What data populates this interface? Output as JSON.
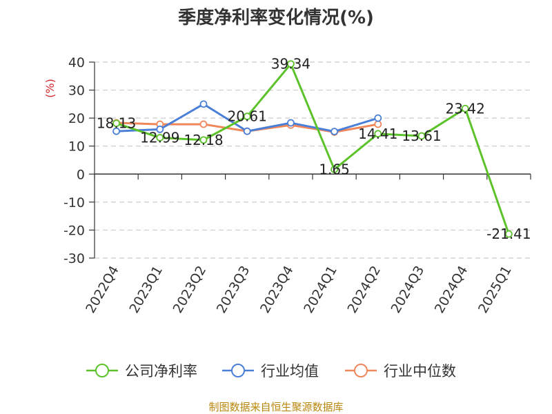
{
  "chart_data": {
    "type": "line",
    "title": "季度净利率变化情况(%)",
    "ylabel": "(%)",
    "categories": [
      "2022Q4",
      "2023Q1",
      "2023Q2",
      "2023Q3",
      "2023Q4",
      "2024Q1",
      "2024Q2",
      "2024Q3",
      "2024Q4",
      "2025Q1"
    ],
    "ylim": [
      -30,
      40
    ],
    "yticks": [
      40,
      30,
      20,
      10,
      0,
      -10,
      -20,
      -30
    ],
    "grid": true,
    "legend_position": "bottom",
    "series": [
      {
        "name": "公司净利率",
        "color": "#5cc22a",
        "values": [
          18.13,
          12.99,
          12.18,
          20.61,
          39.34,
          1.65,
          14.41,
          13.61,
          23.42,
          -21.41
        ],
        "labels": [
          "18.13",
          "12.99",
          "12.18",
          "20.61",
          "39.34",
          "1.65",
          "14.41",
          "13.61",
          "23.42",
          "-21.41"
        ]
      },
      {
        "name": "行业均值",
        "color": "#4a7fd8",
        "values": [
          15.3,
          16.0,
          25.0,
          15.3,
          18.3,
          15.2,
          20.0,
          null,
          null,
          null
        ]
      },
      {
        "name": "行业中位数",
        "color": "#f0875a",
        "values": [
          18.3,
          17.8,
          17.8,
          15.3,
          17.5,
          15.0,
          17.8,
          null,
          null,
          null
        ]
      }
    ]
  },
  "source": "制图数据来自恒生聚源数据库"
}
